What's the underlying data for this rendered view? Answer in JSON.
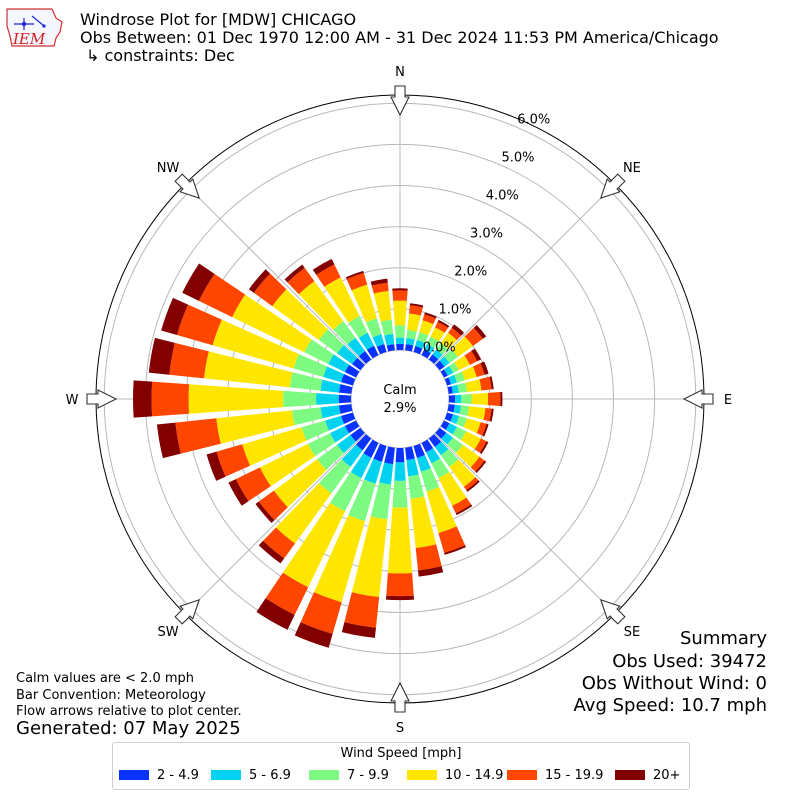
{
  "header": {
    "logo_text": "IEM",
    "title": "Windrose Plot for [MDW] CHICAGO",
    "obs_between": "Obs Between: 01 Dec 1970 12:00 AM - 31 Dec 2024 11:53 PM America/Chicago",
    "constraints": "↳ constraints: Dec"
  },
  "notes": {
    "calm_def": "Calm values are < 2.0 mph",
    "bar_convention": "Bar Convention: Meteorology",
    "flow_arrows": "Flow arrows relative to plot center.",
    "generated": "Generated: 07 May 2025"
  },
  "summary": {
    "heading": "Summary",
    "obs_used": "Obs Used: 39472",
    "obs_without_wind": "Obs Without Wind: 0",
    "avg_speed": "Avg Speed: 10.7 mph"
  },
  "legend": {
    "title": "Wind Speed [mph]",
    "items": [
      {
        "label": "2 - 4.9",
        "color": "#0a32ff"
      },
      {
        "label": "5 - 6.9",
        "color": "#00d2f0"
      },
      {
        "label": "7 - 9.9",
        "color": "#7dfa82"
      },
      {
        "label": "10 - 14.9",
        "color": "#ffe600"
      },
      {
        "label": "15 - 19.9",
        "color": "#ff4600"
      },
      {
        "label": "20+",
        "color": "#820000"
      }
    ]
  },
  "chart_data": {
    "type": "windrose",
    "title": "Windrose Plot for [MDW] CHICAGO",
    "calm": {
      "label": "Calm",
      "value": "2.9%"
    },
    "radial_ticks": [
      "0.0%",
      "1.0%",
      "2.0%",
      "3.0%",
      "4.0%",
      "5.0%",
      "6.0%"
    ],
    "radial_max": 6.2,
    "compass": [
      {
        "label": "N",
        "angle": 0
      },
      {
        "label": "NE",
        "angle": 45
      },
      {
        "label": "E",
        "angle": 90
      },
      {
        "label": "SE",
        "angle": 135
      },
      {
        "label": "S",
        "angle": 180
      },
      {
        "label": "SW",
        "angle": 225
      },
      {
        "label": "W",
        "angle": 270
      },
      {
        "label": "NW",
        "angle": 315
      }
    ],
    "speed_bins": [
      "2 - 4.9",
      "5 - 6.9",
      "7 - 9.9",
      "10 - 14.9",
      "15 - 19.9",
      "20+"
    ],
    "bin_colors": [
      "#0a32ff",
      "#00d2f0",
      "#7dfa82",
      "#ffe600",
      "#ff4600",
      "#820000"
    ],
    "directions": [
      0,
      10,
      20,
      30,
      40,
      50,
      60,
      70,
      80,
      90,
      100,
      110,
      120,
      130,
      140,
      150,
      160,
      170,
      180,
      190,
      200,
      210,
      220,
      230,
      240,
      250,
      260,
      270,
      280,
      290,
      300,
      310,
      320,
      330,
      340,
      350
    ],
    "cumulative": [
      [
        0.15,
        0.3,
        0.6,
        1.2,
        1.45,
        1.5
      ],
      [
        0.15,
        0.3,
        0.5,
        0.9,
        1.1,
        1.15
      ],
      [
        0.15,
        0.3,
        0.5,
        0.8,
        0.95,
        1.0
      ],
      [
        0.15,
        0.3,
        0.5,
        0.75,
        0.9,
        0.95
      ],
      [
        0.15,
        0.3,
        0.5,
        0.8,
        0.95,
        1.05
      ],
      [
        0.15,
        0.3,
        0.55,
        1.0,
        1.3,
        1.4
      ],
      [
        0.1,
        0.25,
        0.4,
        0.7,
        0.9,
        1.0
      ],
      [
        0.1,
        0.25,
        0.45,
        0.75,
        0.95,
        1.05
      ],
      [
        0.1,
        0.25,
        0.45,
        0.8,
        1.05,
        1.1
      ],
      [
        0.15,
        0.3,
        0.55,
        0.95,
        1.25,
        1.3
      ],
      [
        0.15,
        0.3,
        0.5,
        0.9,
        1.05,
        1.1
      ],
      [
        0.15,
        0.3,
        0.5,
        0.85,
        1.0,
        1.05
      ],
      [
        0.15,
        0.35,
        0.6,
        1.0,
        1.15,
        1.2
      ],
      [
        0.2,
        0.4,
        0.7,
        1.2,
        1.35,
        1.4
      ],
      [
        0.25,
        0.5,
        0.85,
        1.45,
        1.55,
        1.6
      ],
      [
        0.25,
        0.55,
        0.95,
        1.7,
        1.9,
        1.95
      ],
      [
        0.3,
        0.65,
        1.15,
        2.2,
        2.7,
        2.75
      ],
      [
        0.3,
        0.7,
        1.25,
        2.45,
        3.0,
        3.15
      ],
      [
        0.35,
        0.8,
        1.45,
        3.05,
        3.6,
        3.7
      ],
      [
        0.4,
        0.9,
        1.75,
        3.65,
        4.4,
        4.65
      ],
      [
        0.4,
        0.95,
        1.9,
        3.95,
        4.75,
        5.1
      ],
      [
        0.4,
        0.95,
        1.85,
        3.9,
        4.65,
        5.05
      ],
      [
        0.35,
        0.85,
        1.65,
        3.15,
        3.6,
        3.75
      ],
      [
        0.3,
        0.7,
        1.3,
        2.6,
        3.05,
        3.15
      ],
      [
        0.3,
        0.7,
        1.3,
        2.6,
        3.25,
        3.45
      ],
      [
        0.3,
        0.7,
        1.3,
        2.8,
        3.45,
        3.7
      ],
      [
        0.3,
        0.75,
        1.45,
        3.3,
        4.3,
        4.75
      ],
      [
        0.3,
        0.85,
        1.65,
        3.95,
        4.85,
        5.3
      ],
      [
        0.3,
        0.75,
        1.5,
        3.6,
        4.45,
        4.95
      ],
      [
        0.3,
        0.75,
        1.5,
        3.55,
        4.45,
        4.85
      ],
      [
        0.3,
        0.75,
        1.4,
        3.35,
        4.25,
        4.7
      ],
      [
        0.25,
        0.7,
        1.25,
        2.65,
        3.2,
        3.35
      ],
      [
        0.25,
        0.65,
        1.15,
        2.35,
        2.75,
        2.85
      ],
      [
        0.25,
        0.6,
        1.05,
        2.1,
        2.45,
        2.6
      ],
      [
        0.2,
        0.45,
        0.85,
        1.7,
        2.0,
        2.05
      ],
      [
        0.15,
        0.4,
        0.75,
        1.45,
        1.65,
        1.75
      ]
    ]
  }
}
